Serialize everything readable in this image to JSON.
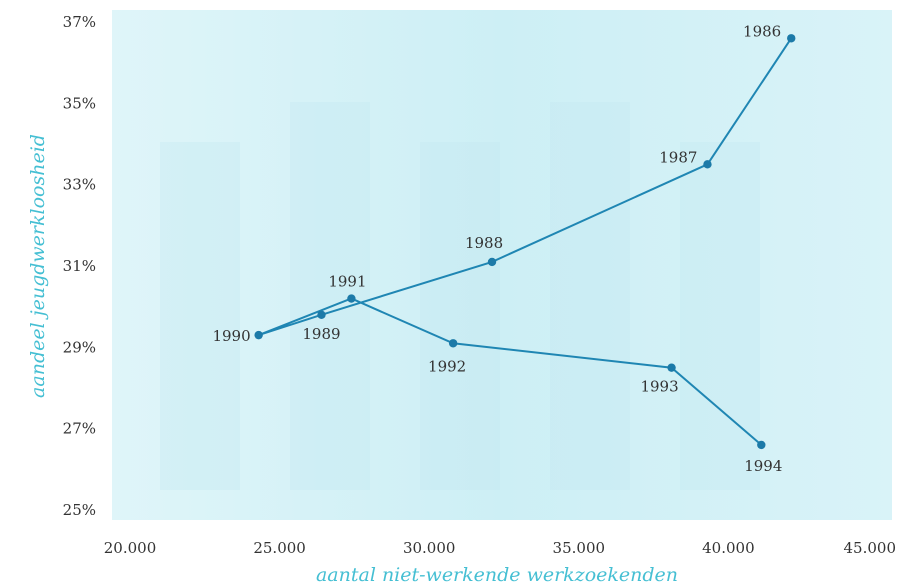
{
  "chart_data": {
    "type": "line",
    "title": "",
    "xlabel": "aantal niet-werkende werkzoekenden",
    "ylabel": "aandeel jeugdwerkloosheid",
    "xlim": [
      20000,
      45000
    ],
    "ylim": [
      25,
      37
    ],
    "x_ticks": [
      20000,
      25000,
      30000,
      35000,
      40000,
      45000
    ],
    "x_tick_labels": [
      "20.000",
      "25.000",
      "30.000",
      "35.000",
      "40.000",
      "45.000"
    ],
    "y_ticks": [
      25,
      27,
      29,
      31,
      33,
      35,
      37
    ],
    "y_tick_labels": [
      "25%",
      "27%",
      "29%",
      "31%",
      "33%",
      "35%",
      "37%"
    ],
    "grid": false,
    "series": [
      {
        "points": [
          {
            "label": "1986",
            "x": 42100,
            "y": 36.6
          },
          {
            "label": "1987",
            "x": 39300,
            "y": 33.5
          },
          {
            "label": "1988",
            "x": 32100,
            "y": 31.1
          },
          {
            "label": "1989",
            "x": 26400,
            "y": 29.8
          },
          {
            "label": "1990",
            "x": 24300,
            "y": 29.3
          },
          {
            "label": "1991",
            "x": 27400,
            "y": 30.2
          },
          {
            "label": "1992",
            "x": 30800,
            "y": 29.1
          },
          {
            "label": "1993",
            "x": 38100,
            "y": 28.5
          },
          {
            "label": "1994",
            "x": 41100,
            "y": 26.6
          }
        ]
      }
    ]
  },
  "colors": {
    "line": "#1f86b3",
    "marker": "#1c7aa8",
    "plot_bg": "#d6f2f7",
    "axis_title": "#45bfd3"
  }
}
